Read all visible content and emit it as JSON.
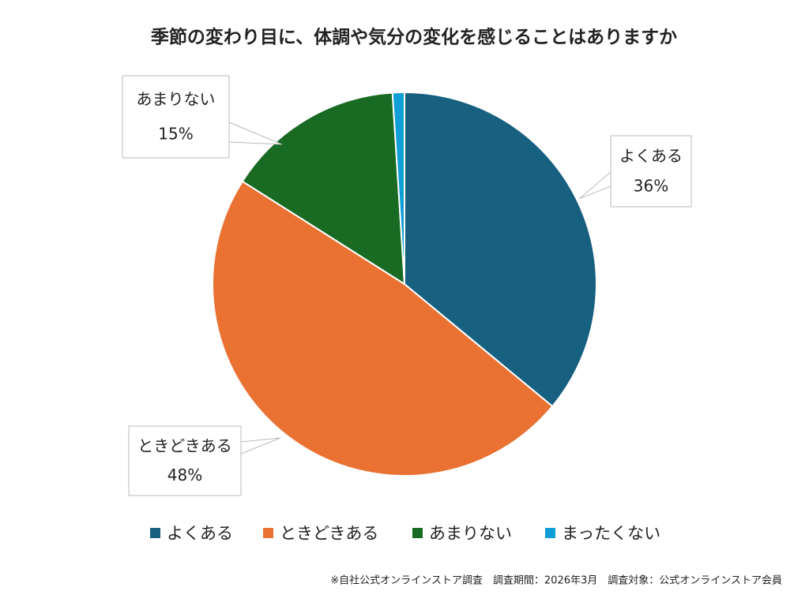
{
  "chart_data": {
    "type": "pie",
    "title": "季節の変わり目に、体調や気分の変化を感じることはありますか",
    "categories": [
      "よくある",
      "ときどきある",
      "あまりない",
      "まったくない"
    ],
    "values": [
      36,
      48,
      15,
      1
    ],
    "value_labels": [
      "36%",
      "48%",
      "15%",
      null
    ],
    "colors": [
      "#17607f",
      "#e97132",
      "#196b24",
      "#0f9ed5"
    ],
    "legend": "bottom",
    "footnote": "※自社公式オンラインストア調査　調査期間：2026年3月　調査対象：公式オンラインストア会員"
  }
}
